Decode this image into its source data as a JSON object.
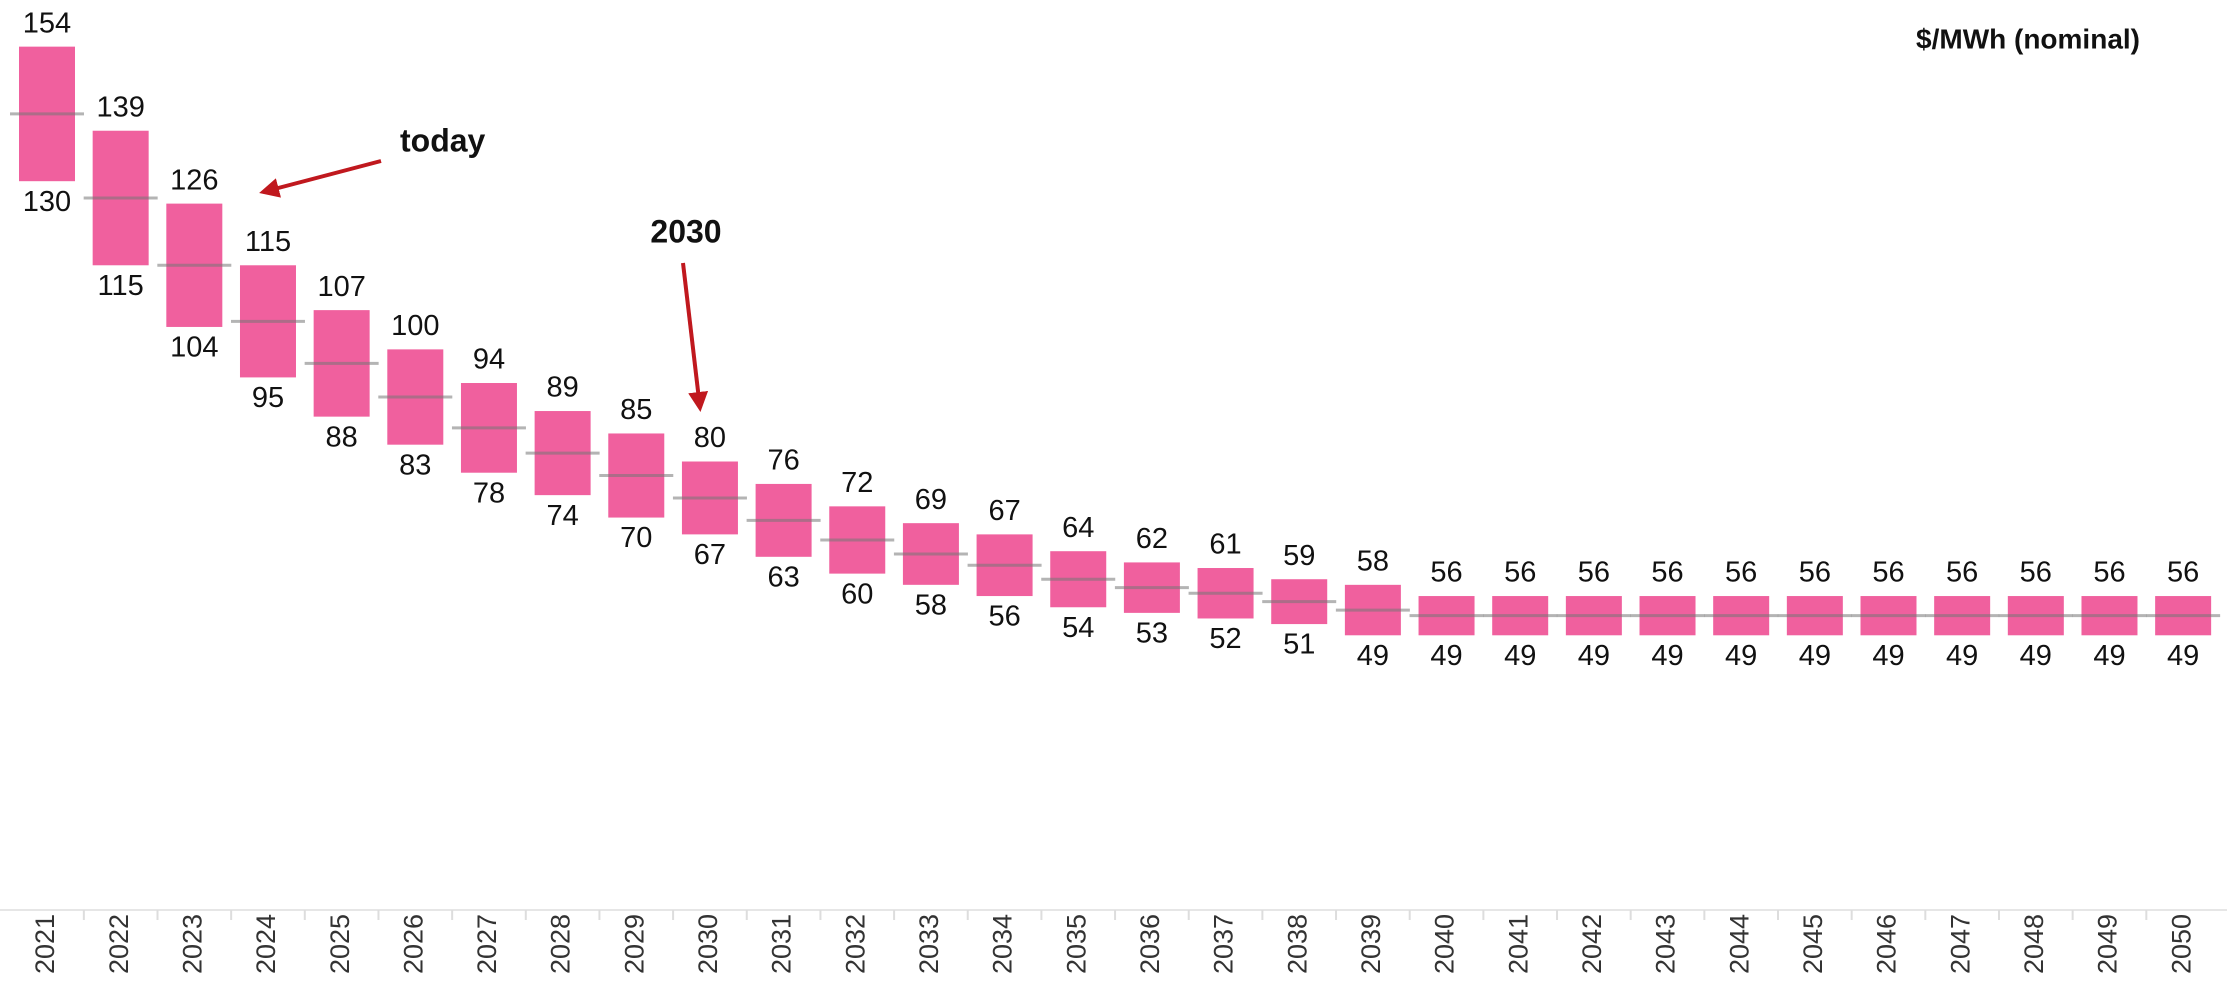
{
  "chart_data": {
    "type": "range",
    "unit_label": "$/MWh (nominal)",
    "categories": [
      "2021",
      "2022",
      "2023",
      "2024",
      "2025",
      "2026",
      "2027",
      "2028",
      "2029",
      "2030",
      "2031",
      "2032",
      "2033",
      "2034",
      "2035",
      "2036",
      "2037",
      "2038",
      "2039",
      "2040",
      "2041",
      "2042",
      "2043",
      "2044",
      "2045",
      "2046",
      "2047",
      "2048",
      "2049",
      "2050"
    ],
    "high": [
      154,
      139,
      126,
      115,
      107,
      100,
      94,
      89,
      85,
      80,
      76,
      72,
      69,
      67,
      64,
      62,
      61,
      59,
      58,
      56,
      56,
      56,
      56,
      56,
      56,
      56,
      56,
      56,
      56,
      56
    ],
    "low": [
      130,
      115,
      104,
      95,
      88,
      83,
      78,
      74,
      70,
      67,
      63,
      60,
      58,
      56,
      54,
      53,
      52,
      51,
      49,
      49,
      49,
      49,
      49,
      49,
      49,
      49,
      49,
      49,
      49,
      49
    ],
    "color": "#f0609e",
    "ylim": [
      0,
      160
    ],
    "annotations": [
      {
        "text": "today"
      },
      {
        "text": "2030"
      }
    ]
  }
}
